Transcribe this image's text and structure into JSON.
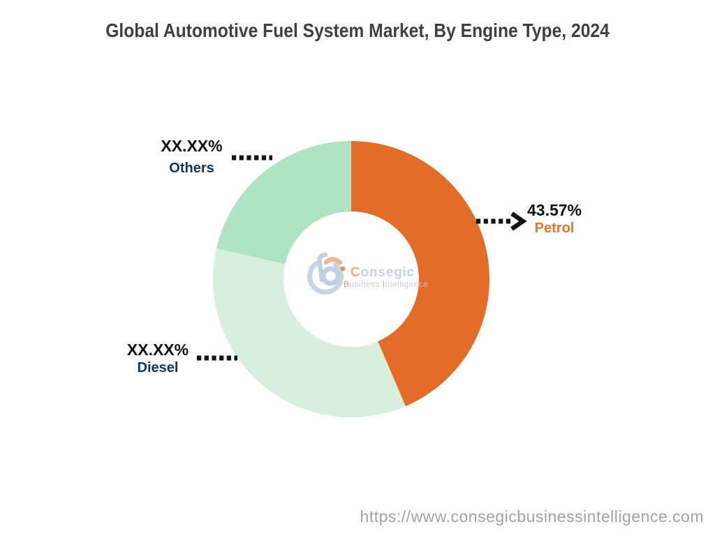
{
  "title": "Global Automotive Fuel System Market, By Engine Type, 2024",
  "footer": {
    "url": "https://www.consegicbusinessintelligence.com"
  },
  "logo": {
    "brand_initial": "C",
    "brand_rest": "onsegic",
    "tagline_initial_1": "B",
    "tagline_rest_1": "usiness ",
    "tagline_initial_2": "I",
    "tagline_rest_2": "ntelligence",
    "accent_color": "#ED7F4E",
    "muted_color": "#C7CEDA"
  },
  "chart_data": {
    "type": "pie",
    "subtype": "donut",
    "title": "Global Automotive Fuel System Market, By Engine Type, 2024",
    "unit": "%",
    "start_angle_deg": 0,
    "direction": "clockwise",
    "inner_radius_ratio": 0.49,
    "legend": "none",
    "slices": [
      {
        "label": "Petrol",
        "display_value": "43.57%",
        "value": 43.57,
        "color": "#E36C26",
        "label_color": "#E2752E"
      },
      {
        "label": "Diesel",
        "display_value": "XX.XX%",
        "value": 35.0,
        "color": "#D7F0DE",
        "label_color": "#14355F"
      },
      {
        "label": "Others",
        "display_value": "XX.XX%",
        "value": 21.43,
        "color": "#AEE3C4",
        "label_color": "#14355F"
      }
    ]
  }
}
